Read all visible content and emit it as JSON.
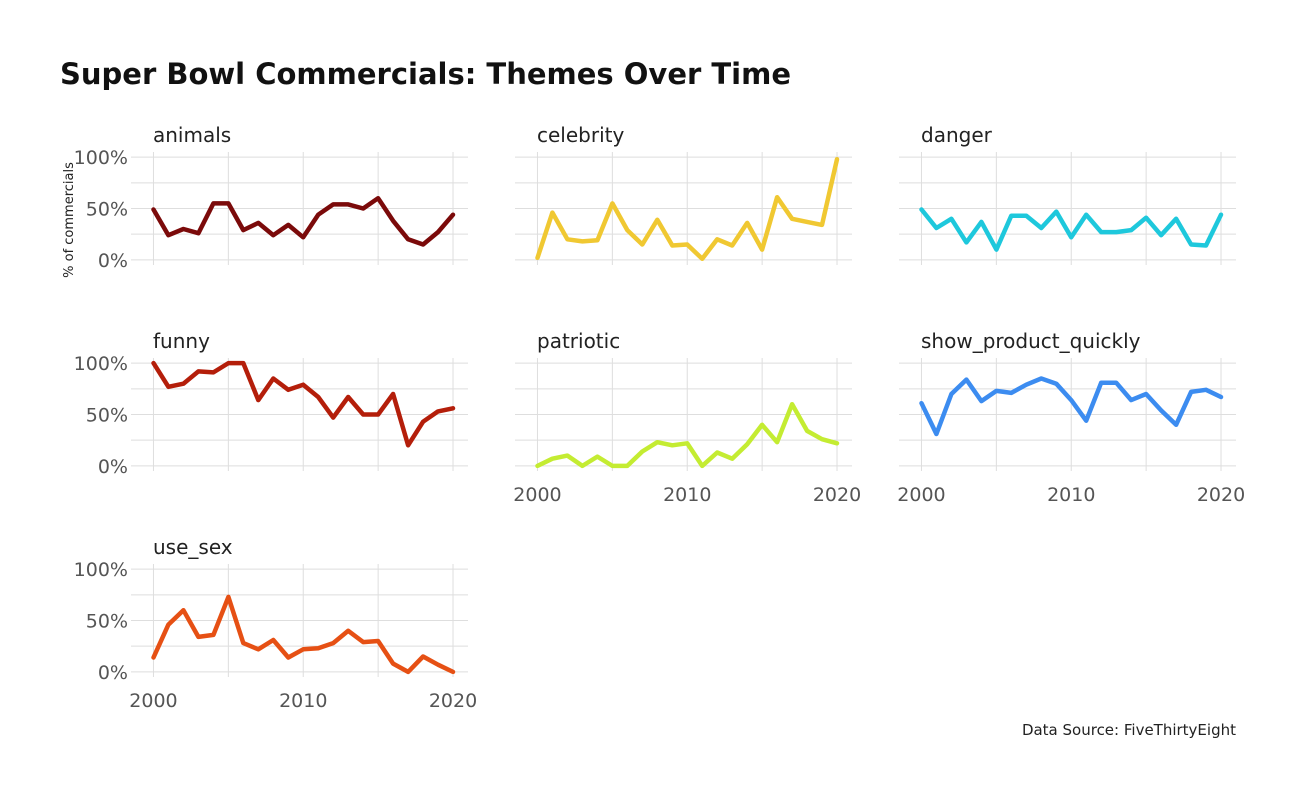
{
  "chart_data": {
    "type": "line",
    "title": "Super Bowl Commercials:  Themes Over Time",
    "ylabel": "% of commercials",
    "caption": "Data Source: FiveThirtyEight",
    "x": [
      2000,
      2001,
      2002,
      2003,
      2004,
      2005,
      2006,
      2007,
      2008,
      2009,
      2010,
      2011,
      2012,
      2013,
      2014,
      2015,
      2016,
      2017,
      2018,
      2019,
      2020
    ],
    "xlim": [
      1998.5,
      2021
    ],
    "ylim": [
      -0.05,
      1.05
    ],
    "x_ticks": [
      2000,
      2010,
      2020
    ],
    "x_tick_labels": [
      "2000",
      "2010",
      "2020"
    ],
    "y_ticks": [
      0,
      0.5,
      1
    ],
    "y_tick_labels": [
      "0%",
      "50%",
      "100%"
    ],
    "grid": true,
    "facets": [
      {
        "name": "animals",
        "color": "#7b0a0a",
        "values": [
          0.49,
          0.24,
          0.3,
          0.26,
          0.55,
          0.55,
          0.29,
          0.36,
          0.24,
          0.34,
          0.22,
          0.44,
          0.54,
          0.54,
          0.5,
          0.6,
          0.38,
          0.2,
          0.15,
          0.27,
          0.44
        ]
      },
      {
        "name": "celebrity",
        "color": "#f0c832",
        "values": [
          0.02,
          0.46,
          0.2,
          0.18,
          0.19,
          0.55,
          0.29,
          0.15,
          0.39,
          0.14,
          0.15,
          0.01,
          0.2,
          0.14,
          0.36,
          0.1,
          0.61,
          0.4,
          0.37,
          0.34,
          0.98
        ]
      },
      {
        "name": "danger",
        "color": "#1ec8dc",
        "values": [
          0.49,
          0.31,
          0.4,
          0.17,
          0.37,
          0.1,
          0.43,
          0.43,
          0.31,
          0.47,
          0.22,
          0.44,
          0.27,
          0.27,
          0.29,
          0.41,
          0.24,
          0.4,
          0.15,
          0.14,
          0.44
        ]
      },
      {
        "name": "funny",
        "color": "#b41e0a",
        "values": [
          1.0,
          0.77,
          0.8,
          0.92,
          0.91,
          1.0,
          1.0,
          0.64,
          0.85,
          0.74,
          0.79,
          0.67,
          0.47,
          0.67,
          0.5,
          0.5,
          0.7,
          0.2,
          0.43,
          0.53,
          0.56
        ]
      },
      {
        "name": "patriotic",
        "color": "#c4ec32",
        "values": [
          0.0,
          0.07,
          0.1,
          0.0,
          0.09,
          0.0,
          0.0,
          0.14,
          0.23,
          0.2,
          0.22,
          0.0,
          0.13,
          0.07,
          0.21,
          0.4,
          0.23,
          0.6,
          0.34,
          0.26,
          0.22
        ]
      },
      {
        "name": "show_product_quickly",
        "color": "#3c8cf0",
        "values": [
          0.61,
          0.31,
          0.7,
          0.84,
          0.63,
          0.73,
          0.71,
          0.79,
          0.85,
          0.8,
          0.64,
          0.44,
          0.81,
          0.81,
          0.64,
          0.7,
          0.54,
          0.4,
          0.72,
          0.74,
          0.67
        ]
      },
      {
        "name": "use_sex",
        "color": "#e65014",
        "values": [
          0.14,
          0.46,
          0.6,
          0.34,
          0.36,
          0.73,
          0.28,
          0.22,
          0.31,
          0.14,
          0.22,
          0.23,
          0.28,
          0.4,
          0.29,
          0.3,
          0.08,
          0.0,
          0.15,
          0.07,
          0.0
        ]
      }
    ]
  }
}
